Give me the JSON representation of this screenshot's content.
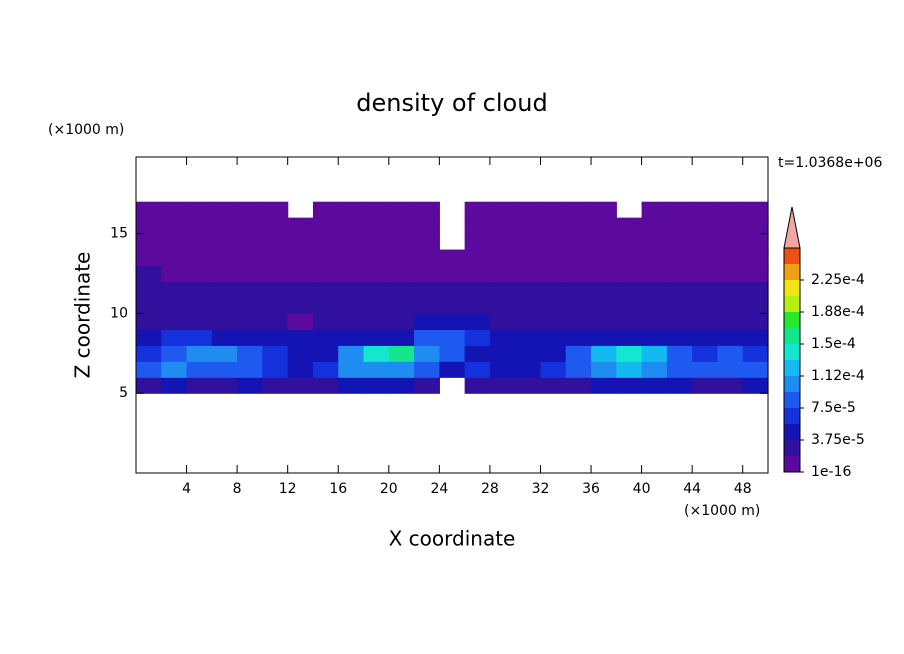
{
  "chart_data": {
    "type": "contour",
    "title": "density of cloud",
    "xlabel": "X coordinate",
    "ylabel": "Z coordinate",
    "x_unit": "(×1000 m)",
    "y_unit": "(×1000 m)",
    "annotation": "t=1.0368e+06",
    "xlim": [
      0,
      50
    ],
    "ylim": [
      0,
      19.8
    ],
    "xticks": [
      4,
      8,
      12,
      16,
      20,
      24,
      28,
      32,
      36,
      40,
      44,
      48
    ],
    "yticks": [
      5,
      10,
      15
    ],
    "x": [
      1,
      3,
      5,
      7,
      9,
      11,
      13,
      15,
      17,
      19,
      21,
      23,
      25,
      27,
      29,
      31,
      33,
      35,
      37,
      39,
      41,
      43,
      45,
      47,
      49
    ],
    "z": [
      5.5,
      6.5,
      7.5,
      8.5,
      9.5,
      10.5,
      11.5,
      12.5,
      13.5,
      14.5,
      15.5,
      16.5
    ],
    "values": [
      [
        3e-05,
        4e-05,
        3e-05,
        3e-05,
        4e-05,
        3e-05,
        2e-05,
        3e-05,
        5e-05,
        5e-05,
        5e-05,
        3e-05,
        0,
        3e-05,
        2e-05,
        2e-05,
        3e-05,
        3e-05,
        5e-05,
        5e-05,
        5e-05,
        4e-05,
        3e-05,
        3e-05,
        4e-05
      ],
      [
        8e-05,
        0.0001,
        9e-05,
        8e-05,
        9e-05,
        7e-05,
        5e-05,
        6e-05,
        0.0001,
        0.00011,
        0.00011,
        9e-05,
        4e-05,
        6e-05,
        5e-05,
        5e-05,
        6e-05,
        9e-05,
        0.00011,
        0.00012,
        0.00011,
        9e-05,
        8e-05,
        9e-05,
        8e-05
      ],
      [
        7e-05,
        9e-05,
        0.0001,
        0.0001,
        9e-05,
        7e-05,
        5e-05,
        5e-05,
        0.0001,
        0.00014,
        0.00015,
        0.0001,
        8e-05,
        5e-05,
        4e-05,
        4e-05,
        5e-05,
        8e-05,
        0.00013,
        0.000145,
        0.00013,
        9e-05,
        7e-05,
        8e-05,
        7e-05
      ],
      [
        5e-05,
        6e-05,
        6e-05,
        5e-05,
        5e-05,
        4e-05,
        4e-05,
        4e-05,
        4e-05,
        5e-05,
        5e-05,
        8e-05,
        9e-05,
        6e-05,
        4e-05,
        4e-05,
        4e-05,
        4e-05,
        5e-05,
        5e-05,
        5e-05,
        5e-05,
        4e-05,
        5e-05,
        5e-05
      ],
      [
        3e-05,
        3e-05,
        3e-05,
        3e-05,
        3e-05,
        2e-05,
        1e-05,
        2e-05,
        3e-05,
        3e-05,
        3e-05,
        4e-05,
        5e-05,
        4e-05,
        3e-05,
        3e-05,
        3e-05,
        3e-05,
        3e-05,
        3e-05,
        3e-05,
        2e-05,
        3e-05,
        3e-05,
        3e-05
      ],
      [
        2.5e-05,
        2e-05,
        2.5e-05,
        2.5e-05,
        3e-05,
        2.5e-05,
        2e-05,
        2.5e-05,
        3e-05,
        2.5e-05,
        3e-05,
        2.5e-05,
        3e-05,
        2.5e-05,
        3e-05,
        2.5e-05,
        3e-05,
        2.5e-05,
        3e-05,
        2.5e-05,
        3e-05,
        2.5e-05,
        2e-05,
        2.5e-05,
        2.5e-05
      ],
      [
        2e-05,
        2.5e-05,
        2.5e-05,
        2e-05,
        2.5e-05,
        2e-05,
        2.5e-05,
        2e-05,
        2.5e-05,
        2e-05,
        2.5e-05,
        2e-05,
        2.5e-05,
        2e-05,
        2.5e-05,
        2e-05,
        2.5e-05,
        2e-05,
        2.5e-05,
        2e-05,
        2.5e-05,
        2e-05,
        2.5e-05,
        2e-05,
        2.5e-05
      ],
      [
        2e-05,
        1.5e-05,
        1.5e-05,
        1.5e-05,
        1.5e-05,
        1.5e-05,
        1.5e-05,
        1.5e-05,
        1.5e-05,
        1.5e-05,
        1.5e-05,
        1.5e-05,
        1.5e-05,
        1.5e-05,
        1.5e-05,
        1.5e-05,
        1.5e-05,
        1.5e-05,
        1.5e-05,
        1.5e-05,
        1.5e-05,
        1.5e-05,
        1.5e-05,
        1.5e-05,
        1.5e-05
      ],
      [
        1e-05,
        1e-05,
        1e-05,
        1e-05,
        1e-05,
        1e-05,
        1e-05,
        1e-05,
        1e-05,
        1e-05,
        1e-05,
        1e-05,
        1e-05,
        1e-05,
        1e-05,
        1e-05,
        1e-05,
        1e-05,
        1e-05,
        1e-05,
        1e-05,
        1e-05,
        1e-05,
        1e-05,
        1e-05
      ],
      [
        1e-05,
        1e-05,
        1e-05,
        1e-05,
        1e-05,
        1e-05,
        1e-05,
        1e-05,
        1e-05,
        1e-05,
        1e-05,
        1e-05,
        0,
        1e-05,
        1e-05,
        1e-05,
        1e-05,
        1e-05,
        1e-05,
        1e-05,
        1e-05,
        1e-05,
        1e-05,
        1e-05,
        1e-05
      ],
      [
        1e-05,
        1e-05,
        1e-05,
        1e-05,
        1e-05,
        1e-05,
        1e-05,
        1e-05,
        1e-05,
        1e-05,
        1e-05,
        1e-05,
        0,
        1e-05,
        1e-05,
        1e-05,
        1e-05,
        1e-05,
        1e-05,
        1e-05,
        1e-05,
        1e-05,
        1e-05,
        1e-05,
        1e-05
      ],
      [
        1e-05,
        1e-05,
        1e-05,
        1e-05,
        1e-05,
        1e-05,
        0,
        1e-05,
        1e-05,
        1e-05,
        1e-05,
        1e-05,
        0,
        1e-05,
        1e-05,
        1e-05,
        1e-05,
        1e-05,
        1e-05,
        0,
        1e-05,
        1e-05,
        1e-05,
        1e-05,
        1e-05
      ]
    ],
    "levels": [
      1e-16,
      1.875e-05,
      3.75e-05,
      5.625e-05,
      7.5e-05,
      9.375e-05,
      0.0001125,
      0.00013125,
      0.00015,
      0.00016875,
      0.0001875,
      0.00020625,
      0.000225,
      0.00024375,
      0.0002625
    ],
    "colors": [
      "#5c0a9e",
      "#30109c",
      "#1414b4",
      "#1432dc",
      "#1e5af0",
      "#1e8cf0",
      "#14b9f0",
      "#14e6d2",
      "#14e68c",
      "#28e628",
      "#b4f014",
      "#f0e614",
      "#f0a014",
      "#f05014"
    ],
    "over_color": "#f4a6a6",
    "colorbar_ticks": [
      {
        "value": 1e-16,
        "label": "1e-16"
      },
      {
        "value": 3.75e-05,
        "label": "3.75e-5"
      },
      {
        "value": 7.5e-05,
        "label": "7.5e-5"
      },
      {
        "value": 0.0001125,
        "label": "1.12e-4"
      },
      {
        "value": 0.00015,
        "label": "1.5e-4"
      },
      {
        "value": 0.0001875,
        "label": "1.88e-4"
      },
      {
        "value": 0.000225,
        "label": "2.25e-4"
      }
    ]
  }
}
